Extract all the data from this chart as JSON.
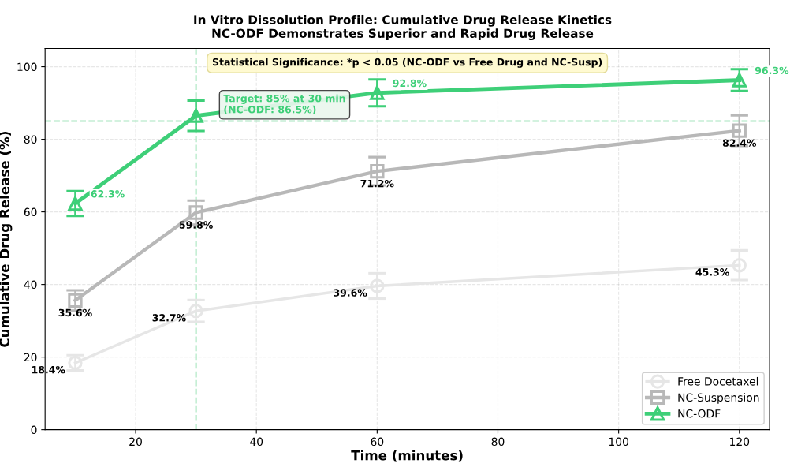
{
  "chart_data": {
    "type": "line",
    "title": "In Vitro Dissolution Profile: Cumulative Drug Release Kinetics",
    "subtitle": "NC-ODF Demonstrates Superior and Rapid Drug Release",
    "xlabel": "Time (minutes)",
    "ylabel": "Cumulative Drug Release (%)",
    "x": [
      10,
      30,
      60,
      120
    ],
    "series": [
      {
        "name": "Free Docetaxel",
        "color": "#e6e6e6",
        "marker": "circle",
        "values": [
          18.4,
          32.7,
          39.6,
          45.3
        ],
        "errors": [
          2.1,
          3.0,
          3.5,
          4.1
        ],
        "value_labels": [
          "18.4%",
          "32.7%",
          "39.6%",
          "45.3%"
        ]
      },
      {
        "name": "NC-Suspension",
        "color": "#b8b8b8",
        "marker": "square",
        "values": [
          35.6,
          59.8,
          71.2,
          82.4
        ],
        "errors": [
          2.8,
          3.3,
          3.9,
          4.2
        ],
        "value_labels": [
          "35.6%",
          "59.8%",
          "71.2%",
          "82.4%"
        ]
      },
      {
        "name": "NC-ODF",
        "color": "#3ecf78",
        "marker": "triangle",
        "values": [
          62.3,
          86.5,
          92.8,
          96.3
        ],
        "errors": [
          3.4,
          4.2,
          3.7,
          3.0
        ],
        "value_labels": [
          "62.3%",
          null,
          "92.8%",
          "96.3%"
        ]
      }
    ],
    "xlim": [
      5,
      125
    ],
    "xticks": [
      20,
      40,
      60,
      80,
      100,
      120
    ],
    "ylim": [
      0,
      105
    ],
    "yticks": [
      0,
      20,
      40,
      60,
      80,
      100
    ],
    "ref_lines": [
      {
        "axis": "y",
        "value": 85,
        "color": "#a8e6bf",
        "line_style": "dashed"
      },
      {
        "axis": "x",
        "value": 30,
        "color": "#a8e6bf",
        "line_style": "dashed"
      }
    ],
    "annotations": [
      "Statistical Significance: *p < 0.05 (NC-ODF vs Free Drug and NC-Susp)",
      {
        "text": "Target: 85% at 30 min\n(NC-ODF: 86.5%)",
        "x": 30,
        "y": 86.5
      }
    ],
    "grid": true,
    "legend": "bottom right",
    "line_style": "solid"
  }
}
